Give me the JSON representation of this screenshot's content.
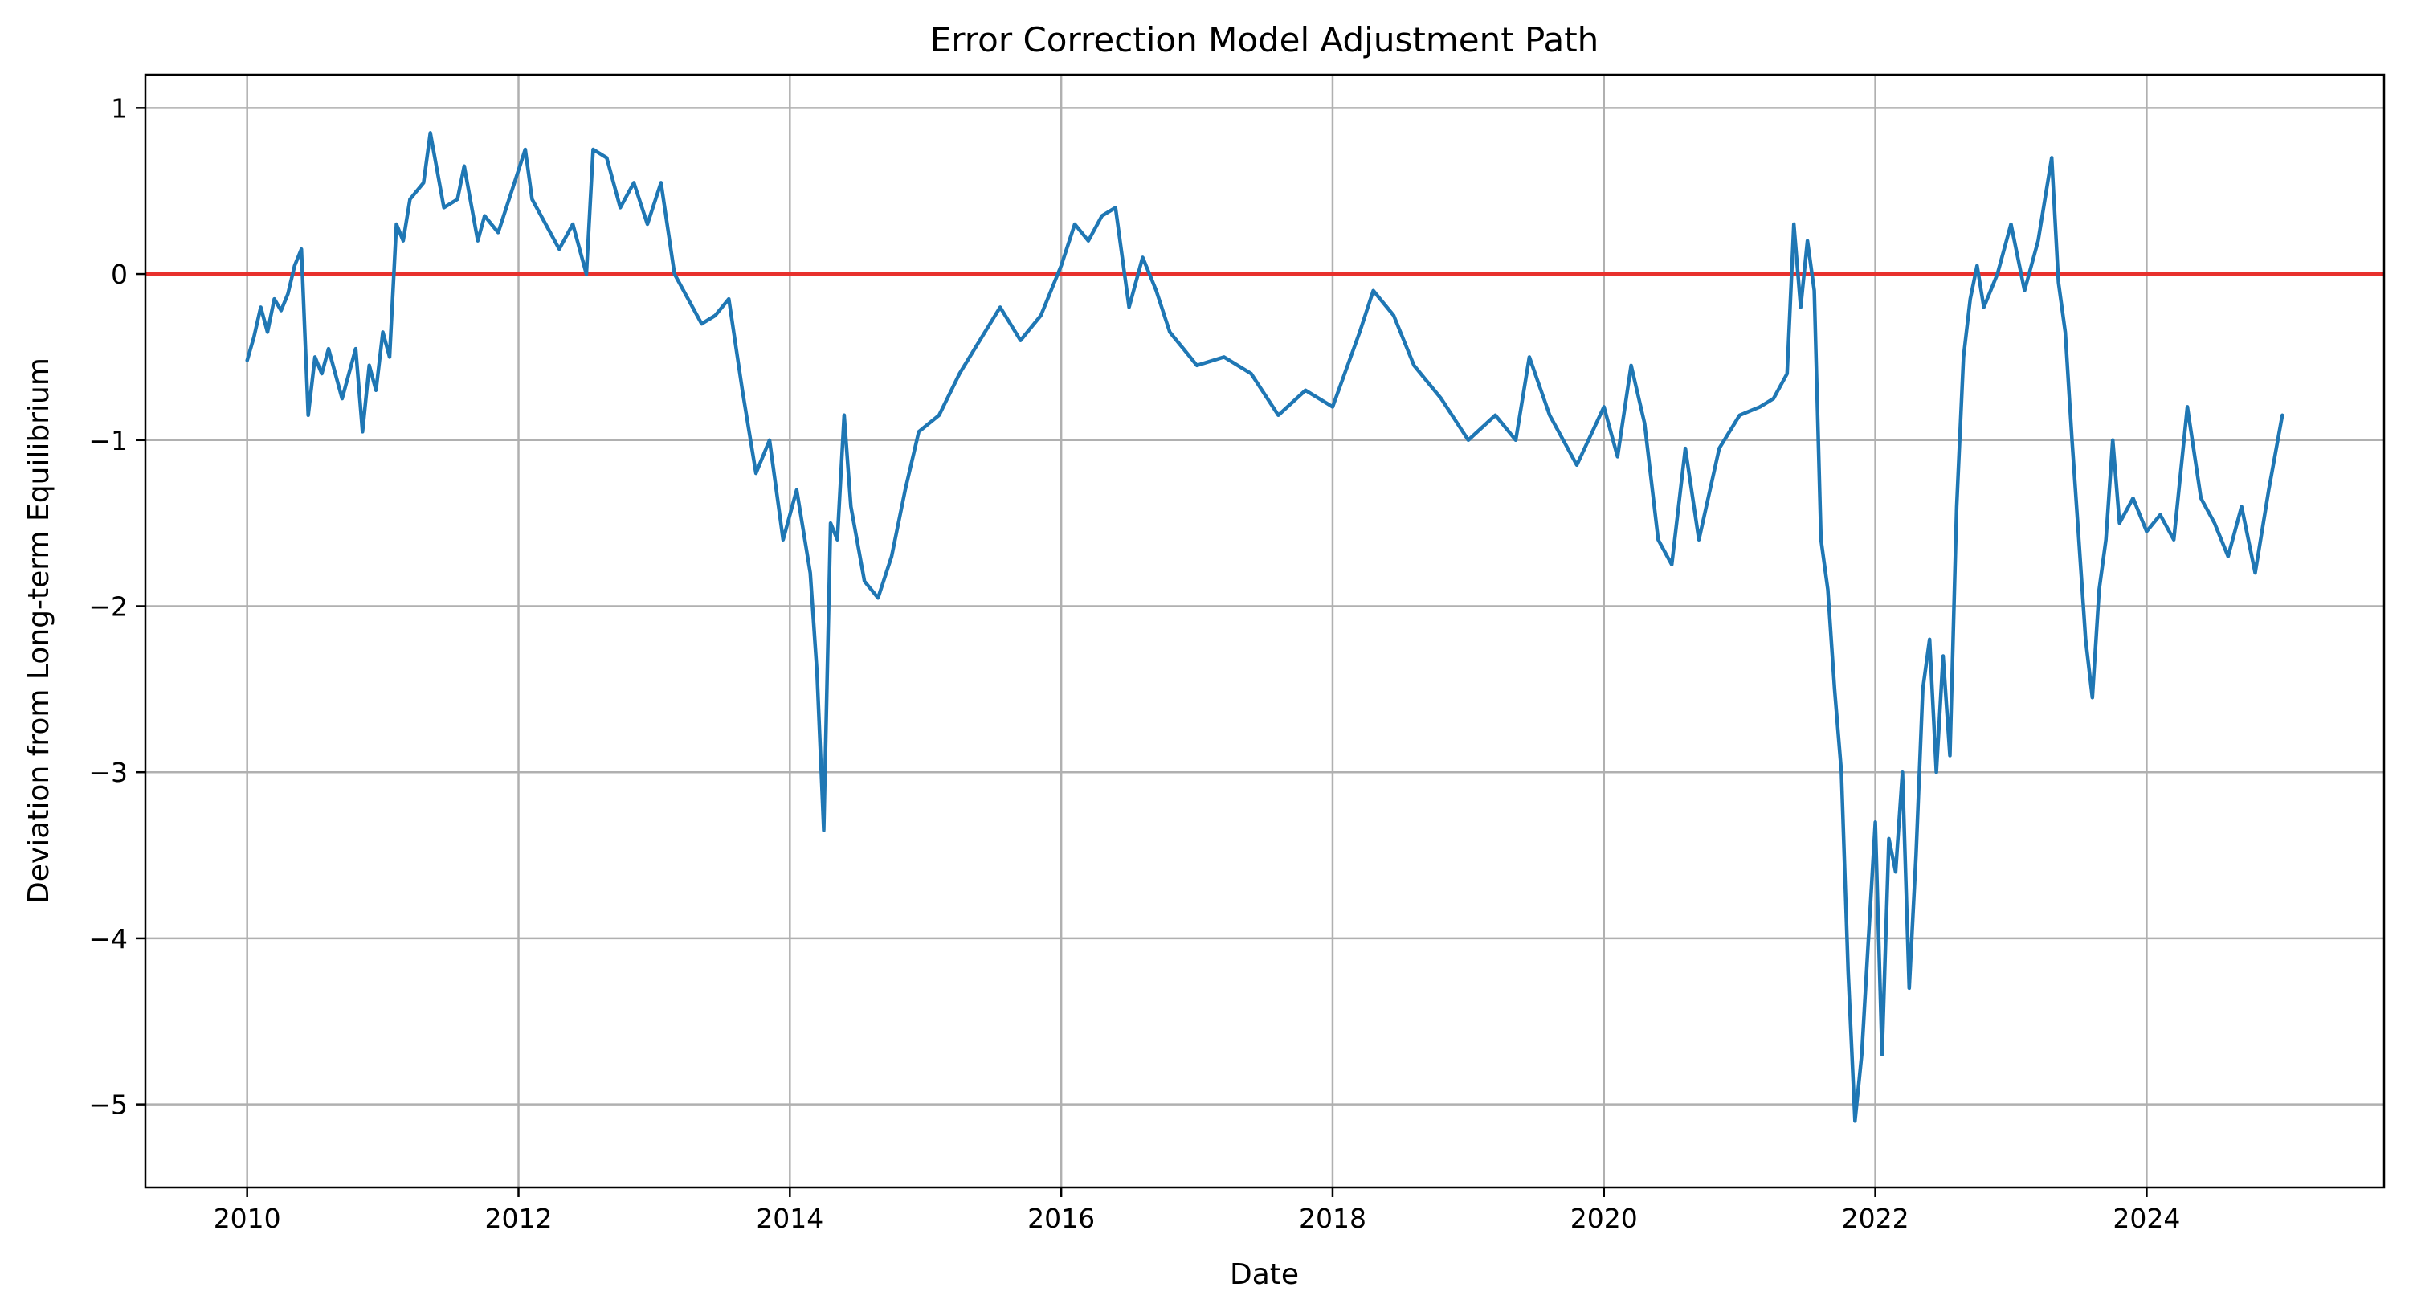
{
  "chart_data": {
    "type": "line",
    "title": "Error Correction Model Adjustment Path",
    "xlabel": "Date",
    "ylabel": "Deviation from Long-term Equilibrium",
    "xlim": [
      2009.25,
      2025.75
    ],
    "ylim": [
      -5.5,
      1.2
    ],
    "x_ticks": [
      2010,
      2012,
      2014,
      2016,
      2018,
      2020,
      2022,
      2024
    ],
    "x_tick_labels": [
      "2010",
      "2012",
      "2014",
      "2016",
      "2018",
      "2020",
      "2022",
      "2024"
    ],
    "y_ticks": [
      1,
      0,
      -1,
      -2,
      -3,
      -4,
      -5
    ],
    "y_tick_labels": [
      "1",
      "0",
      "−1",
      "−2",
      "−3",
      "−4",
      "−5"
    ],
    "grid": true,
    "legend": "none",
    "reference_line": {
      "y": 0,
      "color": "#e8312d"
    },
    "series": [
      {
        "color": "#1f77b4",
        "x": [
          2010.0,
          2010.05,
          2010.1,
          2010.15,
          2010.2,
          2010.25,
          2010.3,
          2010.35,
          2010.4,
          2010.45,
          2010.5,
          2010.55,
          2010.6,
          2010.7,
          2010.8,
          2010.85,
          2010.9,
          2010.95,
          2011.0,
          2011.05,
          2011.1,
          2011.15,
          2011.2,
          2011.3,
          2011.35,
          2011.45,
          2011.55,
          2011.6,
          2011.7,
          2011.75,
          2011.85,
          2011.95,
          2012.05,
          2012.1,
          2012.2,
          2012.3,
          2012.4,
          2012.5,
          2012.55,
          2012.65,
          2012.75,
          2012.85,
          2012.95,
          2013.05,
          2013.15,
          2013.25,
          2013.35,
          2013.45,
          2013.55,
          2013.65,
          2013.75,
          2013.85,
          2013.95,
          2014.05,
          2014.15,
          2014.2,
          2014.25,
          2014.3,
          2014.35,
          2014.4,
          2014.45,
          2014.55,
          2014.65,
          2014.75,
          2014.85,
          2014.95,
          2015.1,
          2015.25,
          2015.4,
          2015.55,
          2015.7,
          2015.85,
          2016.0,
          2016.1,
          2016.2,
          2016.3,
          2016.4,
          2016.5,
          2016.6,
          2016.7,
          2016.8,
          2016.9,
          2017.0,
          2017.2,
          2017.4,
          2017.6,
          2017.8,
          2018.0,
          2018.2,
          2018.3,
          2018.45,
          2018.6,
          2018.8,
          2019.0,
          2019.2,
          2019.35,
          2019.45,
          2019.6,
          2019.8,
          2020.0,
          2020.1,
          2020.2,
          2020.3,
          2020.4,
          2020.5,
          2020.6,
          2020.7,
          2020.85,
          2021.0,
          2021.15,
          2021.25,
          2021.35,
          2021.4,
          2021.45,
          2021.5,
          2021.55,
          2021.6,
          2021.65,
          2021.7,
          2021.75,
          2021.8,
          2021.85,
          2021.9,
          2021.95,
          2022.0,
          2022.05,
          2022.1,
          2022.15,
          2022.2,
          2022.25,
          2022.3,
          2022.35,
          2022.4,
          2022.45,
          2022.5,
          2022.55,
          2022.6,
          2022.65,
          2022.7,
          2022.75,
          2022.8,
          2022.9,
          2023.0,
          2023.1,
          2023.2,
          2023.3,
          2023.35,
          2023.4,
          2023.45,
          2023.5,
          2023.55,
          2023.6,
          2023.65,
          2023.7,
          2023.75,
          2023.8,
          2023.9,
          2024.0,
          2024.1,
          2024.2,
          2024.3,
          2024.4,
          2024.5,
          2024.6,
          2024.7,
          2024.8,
          2024.9,
          2025.0
        ],
        "y": [
          -0.52,
          -0.38,
          -0.2,
          -0.35,
          -0.15,
          -0.22,
          -0.12,
          0.05,
          0.15,
          -0.85,
          -0.5,
          -0.6,
          -0.45,
          -0.75,
          -0.45,
          -0.95,
          -0.55,
          -0.7,
          -0.35,
          -0.5,
          0.3,
          0.2,
          0.45,
          0.55,
          0.85,
          0.4,
          0.45,
          0.65,
          0.2,
          0.35,
          0.25,
          0.5,
          0.75,
          0.45,
          0.3,
          0.15,
          0.3,
          0.0,
          0.75,
          0.7,
          0.4,
          0.55,
          0.3,
          0.55,
          0.0,
          -0.15,
          -0.3,
          -0.25,
          -0.15,
          -0.7,
          -1.2,
          -1.0,
          -1.6,
          -1.3,
          -1.8,
          -2.4,
          -3.35,
          -1.5,
          -1.6,
          -0.85,
          -1.4,
          -1.85,
          -1.95,
          -1.7,
          -1.3,
          -0.95,
          -0.85,
          -0.6,
          -0.4,
          -0.2,
          -0.4,
          -0.25,
          0.05,
          0.3,
          0.2,
          0.35,
          0.4,
          -0.2,
          0.1,
          -0.1,
          -0.35,
          -0.45,
          -0.55,
          -0.5,
          -0.6,
          -0.85,
          -0.7,
          -0.8,
          -0.35,
          -0.1,
          -0.25,
          -0.55,
          -0.75,
          -1.0,
          -0.85,
          -1.0,
          -0.5,
          -0.85,
          -1.15,
          -0.8,
          -1.1,
          -0.55,
          -0.9,
          -1.6,
          -1.75,
          -1.05,
          -1.6,
          -1.05,
          -0.85,
          -0.8,
          -0.75,
          -0.6,
          0.3,
          -0.2,
          0.2,
          -0.1,
          -1.6,
          -1.9,
          -2.5,
          -3.0,
          -4.2,
          -5.1,
          -4.7,
          -4.0,
          -3.3,
          -4.7,
          -3.4,
          -3.6,
          -3.0,
          -4.3,
          -3.5,
          -2.5,
          -2.2,
          -3.0,
          -2.3,
          -2.9,
          -1.4,
          -0.5,
          -0.15,
          0.05,
          -0.2,
          0.0,
          0.3,
          -0.1,
          0.2,
          0.7,
          -0.05,
          -0.35,
          -1.0,
          -1.6,
          -2.2,
          -2.55,
          -1.9,
          -1.6,
          -1.0,
          -1.5,
          -1.35,
          -1.55,
          -1.45,
          -1.6,
          -0.8,
          -1.35,
          -1.5,
          -1.7,
          -1.4,
          -1.8,
          -1.3,
          -0.85
        ]
      }
    ]
  }
}
